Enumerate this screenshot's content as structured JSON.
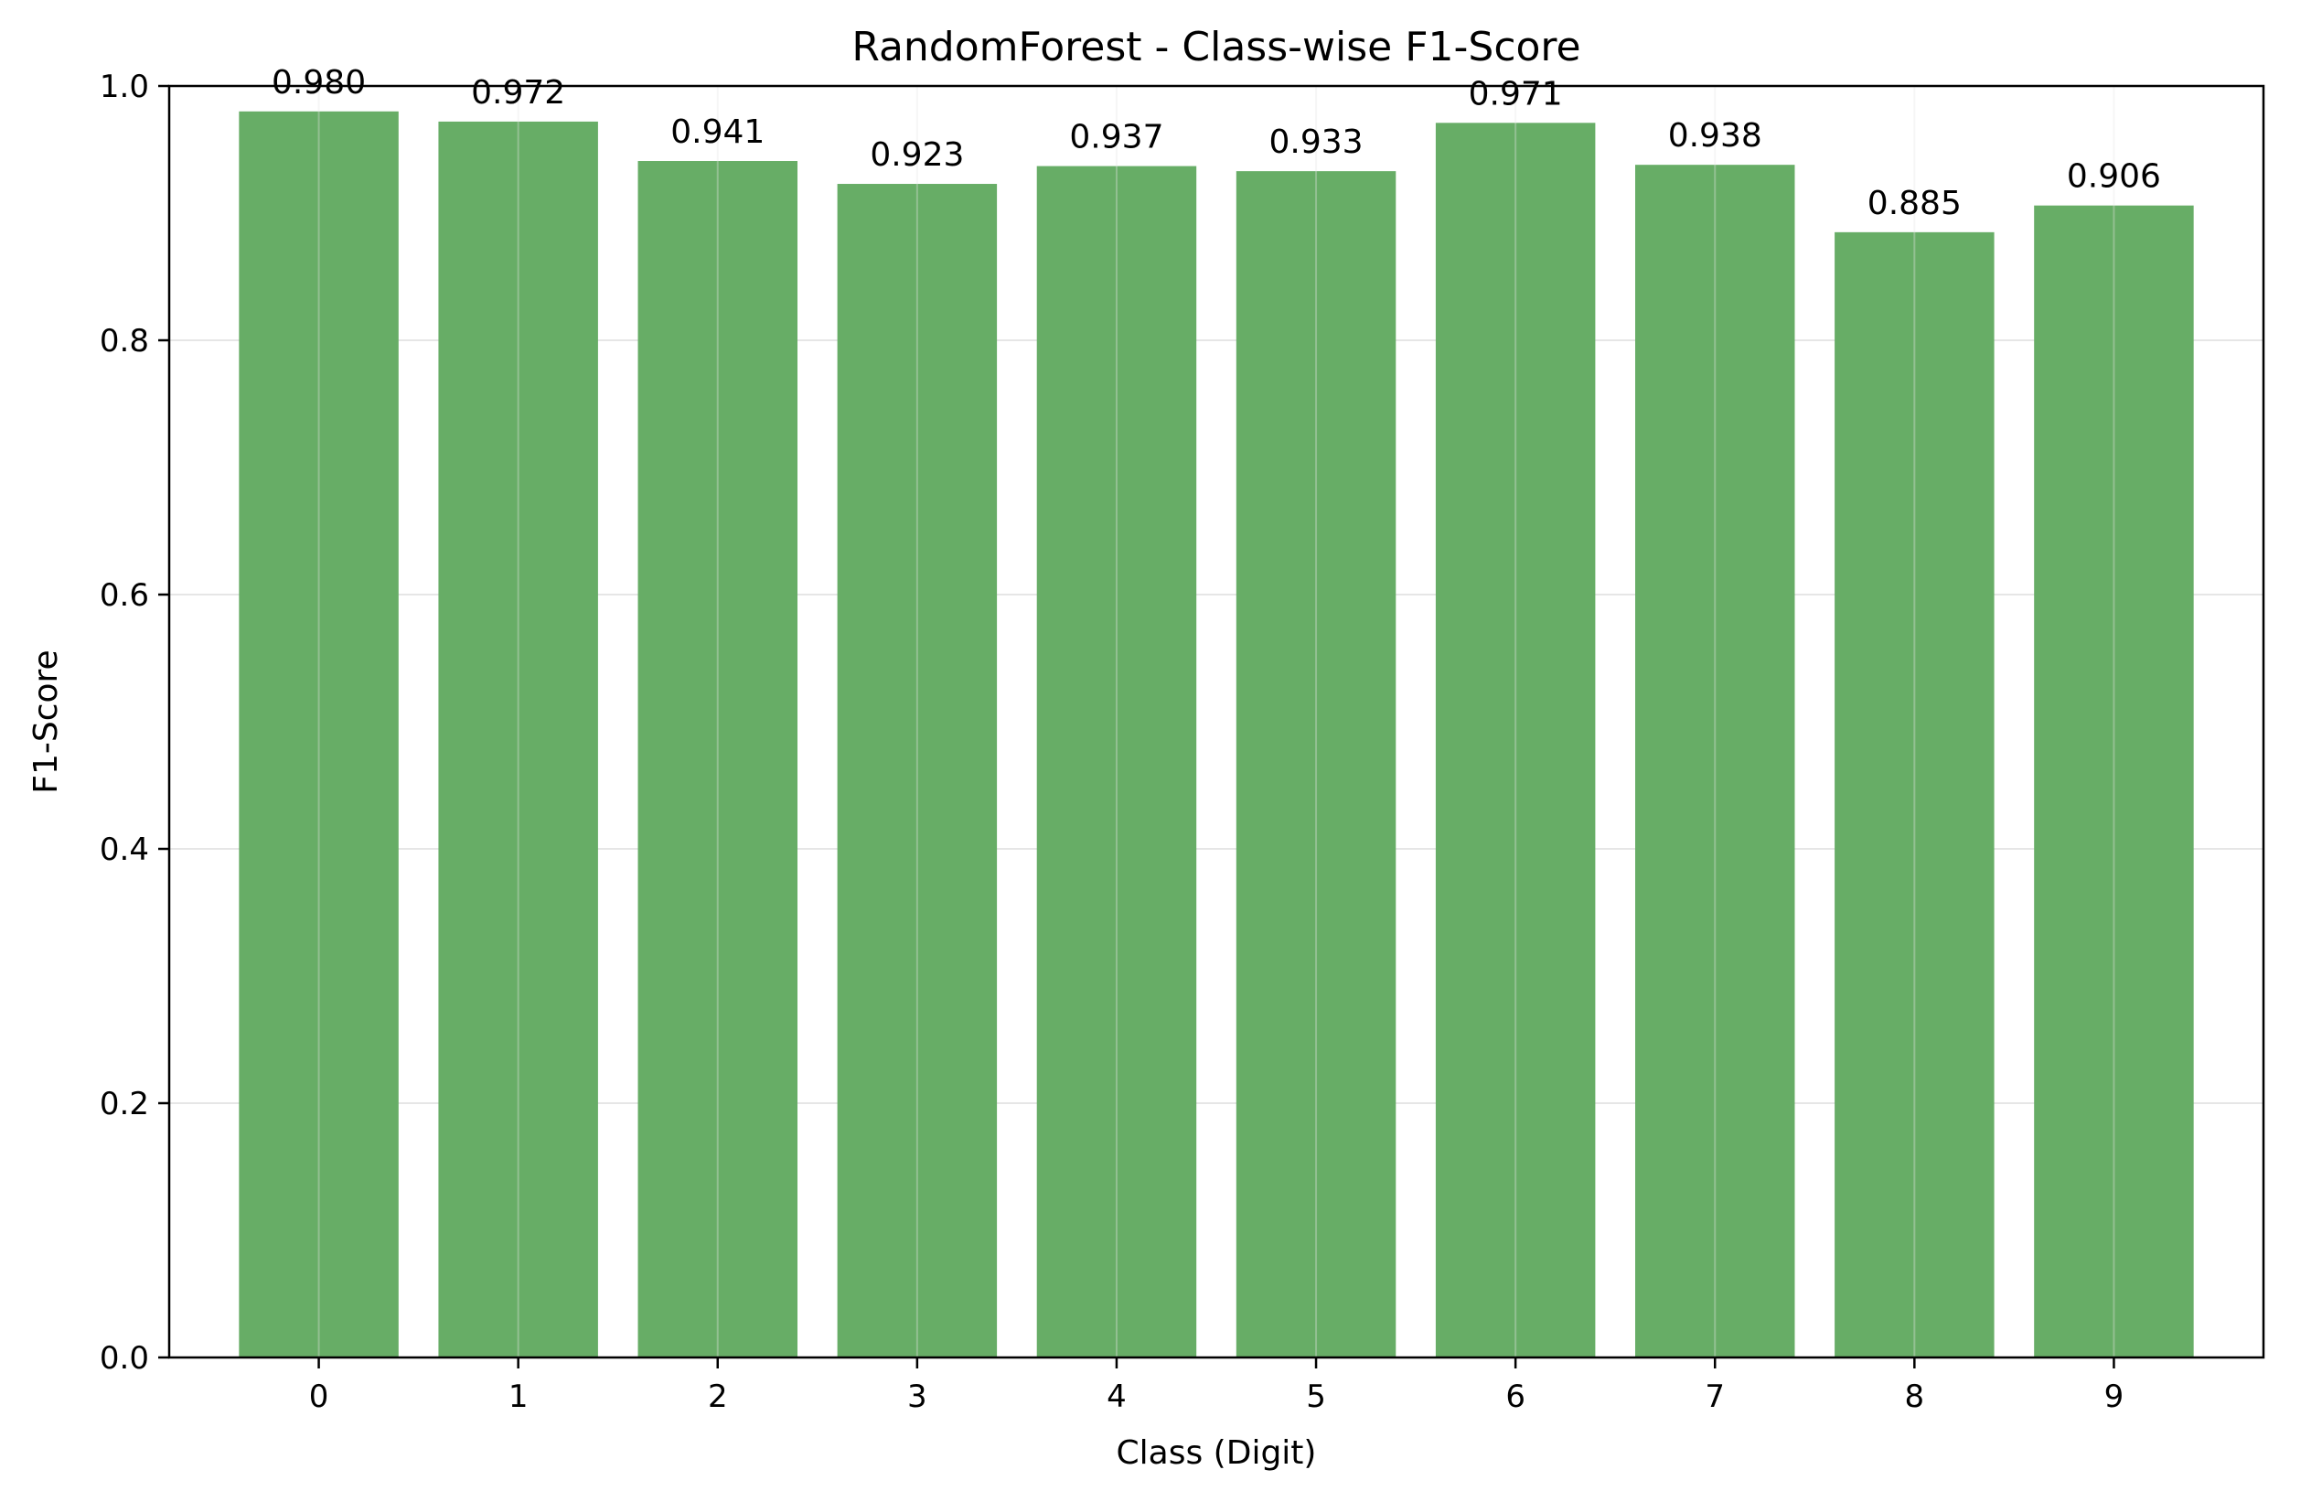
{
  "chart_data": {
    "type": "bar",
    "title": "RandomForest - Class-wise F1-Score",
    "xlabel": "Class (Digit)",
    "ylabel": "F1-Score",
    "categories": [
      "0",
      "1",
      "2",
      "3",
      "4",
      "5",
      "6",
      "7",
      "8",
      "9"
    ],
    "values": [
      0.98,
      0.972,
      0.941,
      0.923,
      0.937,
      0.933,
      0.971,
      0.938,
      0.885,
      0.906
    ],
    "value_labels": [
      "0.980",
      "0.972",
      "0.941",
      "0.923",
      "0.937",
      "0.933",
      "0.971",
      "0.938",
      "0.885",
      "0.906"
    ],
    "ylim": [
      0,
      1.0
    ],
    "yticks": [
      0.0,
      0.2,
      0.4,
      0.6,
      0.8,
      1.0
    ],
    "ytick_labels": [
      "0.0",
      "0.2",
      "0.4",
      "0.6",
      "0.8",
      "1.0"
    ],
    "grid": true,
    "legend": "none",
    "colors": {
      "bar": "#67ad66",
      "grid": "#e6e6e6",
      "axis": "#000000"
    }
  }
}
